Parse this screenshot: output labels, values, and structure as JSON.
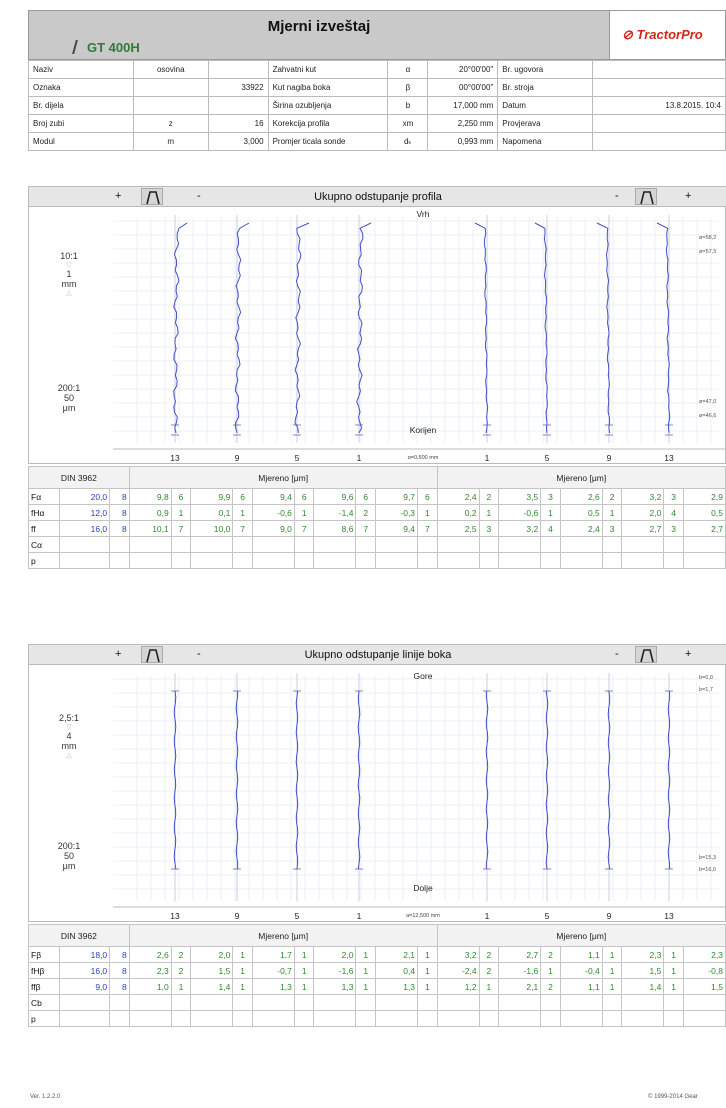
{
  "header": {
    "title": "Mjerni izveštaj",
    "model": "GT 400H",
    "logo": {
      "prefix": "Tractor",
      "suffix": "Pro"
    }
  },
  "info_rows": [
    [
      "Naziv",
      "osovina",
      "",
      "Zahvatni kut",
      "α",
      "20°00'00\"",
      "Br. ugovora",
      ""
    ],
    [
      "Oznaka",
      "",
      "33922",
      "Kut nagiba boka",
      "β",
      "00°00'00\"",
      "Br. stroja",
      ""
    ],
    [
      "Br. dijela",
      "",
      "",
      "Širina ozubljenja",
      "b",
      "17,000 mm",
      "Datum",
      "13.8.2015. 10:4"
    ],
    [
      "Broj zubi",
      "z",
      "16",
      "Korekcija profila",
      "xm",
      "2,250 mm",
      "Provjerava",
      ""
    ],
    [
      "Modul",
      "m",
      "3,000",
      "Promjer ticala sonde",
      "dₖ",
      "0,993 mm",
      "Napomena",
      ""
    ]
  ],
  "profile": {
    "title": "Ukupno odstupanje profila",
    "plus": "+",
    "minus": "-",
    "top_label": "Vrh",
    "bottom_label": "Korijen",
    "bottom_note": "α=0,500 mm",
    "scale1": [
      "10:1",
      "1",
      "mm"
    ],
    "scale2": [
      "200:1",
      "50",
      "μm"
    ],
    "tooth_labels": [
      "13",
      "9",
      "5",
      "1",
      "1",
      "5",
      "9",
      "13"
    ],
    "right_marks": [
      "ø=58,2",
      "ø=57,5",
      "ø=47,0",
      "ø=46,6"
    ]
  },
  "profile_table": {
    "standard": "DIN 3962",
    "measured_label": "Mjereno  [μm]",
    "rows": [
      {
        "sym": "Fα",
        "tol": "20,0",
        "q": "8",
        "left": [
          "9,8",
          "6",
          "9,9",
          "6",
          "9,4",
          "6",
          "9,6",
          "6",
          "9,7",
          "6"
        ],
        "right": [
          "2,4",
          "2",
          "3,5",
          "3",
          "2,6",
          "2",
          "3,2",
          "3",
          "2,9"
        ]
      },
      {
        "sym": "fHα",
        "tol": "12,0",
        "q": "8",
        "left": [
          "0,9",
          "1",
          "0,1",
          "1",
          "-0,6",
          "1",
          "-1,4",
          "2",
          "-0,3",
          "1"
        ],
        "right": [
          "0,2",
          "1",
          "-0,6",
          "1",
          "0,5",
          "1",
          "2,0",
          "4",
          "0,5"
        ]
      },
      {
        "sym": "ff",
        "tol": "16,0",
        "q": "8",
        "left": [
          "10,1",
          "7",
          "10,0",
          "7",
          "9,0",
          "7",
          "8,6",
          "7",
          "9,4",
          "7"
        ],
        "right": [
          "2,5",
          "3",
          "3,2",
          "4",
          "2,4",
          "3",
          "2,7",
          "3",
          "2,7"
        ]
      },
      {
        "sym": "Cα",
        "tol": "",
        "q": "",
        "left": [
          "",
          "",
          "",
          "",
          "",
          "",
          "",
          "",
          "",
          ""
        ],
        "right": [
          "",
          "",
          "",
          "",
          "",
          "",
          "",
          "",
          ""
        ]
      },
      {
        "sym": "p",
        "tol": "",
        "q": "",
        "left": [
          "",
          "",
          "",
          "",
          "",
          "",
          "",
          "",
          "",
          ""
        ],
        "right": [
          "",
          "",
          "",
          "",
          "",
          "",
          "",
          "",
          ""
        ]
      }
    ]
  },
  "lead": {
    "title": "Ukupno odstupanje linije boka",
    "plus": "+",
    "minus": "-",
    "top_label": "Gore",
    "bottom_label": "Dolje",
    "bottom_note": "a=12,500 mm",
    "scale1": [
      "2,5:1",
      "4",
      "mm"
    ],
    "scale2": [
      "200:1",
      "50",
      "μm"
    ],
    "tooth_labels": [
      "13",
      "9",
      "5",
      "1",
      "1",
      "5",
      "9",
      "13"
    ],
    "right_marks": [
      "b=0,0",
      "b=1,7",
      "b=15,3",
      "b=16,0"
    ]
  },
  "lead_table": {
    "standard": "DIN 3962",
    "measured_label": "Mjereno  [μm]",
    "rows": [
      {
        "sym": "Fβ",
        "tol": "18,0",
        "q": "8",
        "left": [
          "2,6",
          "2",
          "2,0",
          "1",
          "1,7",
          "1",
          "2,0",
          "1",
          "2,1",
          "1"
        ],
        "right": [
          "3,2",
          "2",
          "2,7",
          "2",
          "1,1",
          "1",
          "2,3",
          "1",
          "2,3"
        ]
      },
      {
        "sym": "fHβ",
        "tol": "16,0",
        "q": "8",
        "left": [
          "2,3",
          "2",
          "1,5",
          "1",
          "-0,7",
          "1",
          "-1,6",
          "1",
          "0,4",
          "1"
        ],
        "right": [
          "-2,4",
          "2",
          "-1,6",
          "1",
          "-0,4",
          "1",
          "1,5",
          "1",
          "-0,8"
        ]
      },
      {
        "sym": "ffβ",
        "tol": "9,0",
        "q": "8",
        "left": [
          "1,0",
          "1",
          "1,4",
          "1",
          "1,3",
          "1",
          "1,3",
          "1",
          "1,3",
          "1"
        ],
        "right": [
          "1,2",
          "1",
          "2,1",
          "2",
          "1,1",
          "1",
          "1,4",
          "1",
          "1,5"
        ]
      },
      {
        "sym": "Cb",
        "tol": "",
        "q": "",
        "left": [
          "",
          "",
          "",
          "",
          "",
          "",
          "",
          "",
          "",
          ""
        ],
        "right": [
          "",
          "",
          "",
          "",
          "",
          "",
          "",
          "",
          ""
        ]
      },
      {
        "sym": "p",
        "tol": "",
        "q": "",
        "left": [
          "",
          "",
          "",
          "",
          "",
          "",
          "",
          "",
          "",
          ""
        ],
        "right": [
          "",
          "",
          "",
          "",
          "",
          "",
          "",
          "",
          ""
        ]
      }
    ]
  },
  "footer": {
    "version": "Ver. 1.2.2.0",
    "copyright": "© 1999-2014 Gear"
  }
}
